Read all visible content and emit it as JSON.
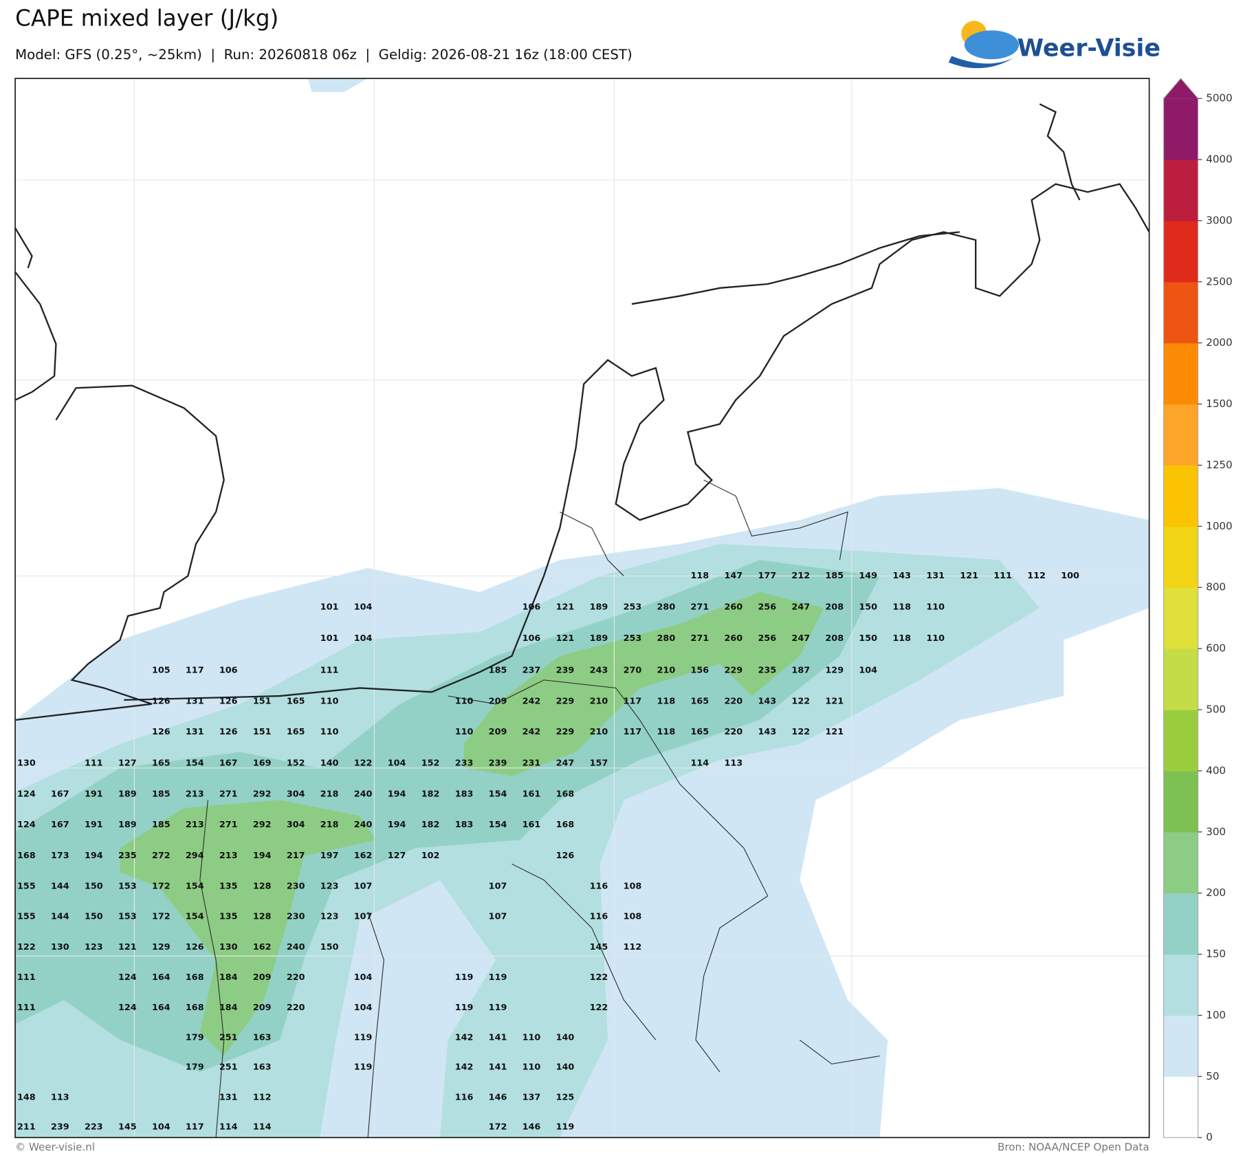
{
  "header": {
    "title": "CAPE mixed layer (J/kg)",
    "subtitle": "Model: GFS (0.25°, ~25km)  |  Run: 20260818 06z  |  Geldig: 2026-08-21 16z (18:00 CEST)"
  },
  "logo": {
    "text": "Weer-Visie"
  },
  "map": {
    "grid_values": [
      [
        null,
        null,
        null,
        null,
        null,
        null,
        null,
        null,
        null,
        null,
        null,
        null,
        null,
        null,
        null,
        null,
        null,
        null,
        null,
        null,
        118,
        147,
        177,
        212,
        185,
        149,
        143,
        131,
        121,
        111,
        112,
        100
      ],
      [
        null,
        null,
        null,
        null,
        null,
        null,
        null,
        null,
        null,
        101,
        104,
        null,
        null,
        null,
        null,
        106,
        121,
        189,
        253,
        280,
        271,
        260,
        256,
        247,
        208,
        150,
        118,
        110,
        null,
        null,
        null,
        null
      ],
      [
        null,
        null,
        null,
        null,
        null,
        null,
        null,
        null,
        null,
        101,
        104,
        null,
        null,
        null,
        null,
        106,
        121,
        189,
        253,
        280,
        271,
        260,
        256,
        247,
        208,
        150,
        118,
        110,
        null,
        null,
        null,
        null
      ],
      [
        null,
        null,
        null,
        null,
        105,
        117,
        106,
        null,
        null,
        111,
        null,
        null,
        null,
        null,
        185,
        237,
        239,
        243,
        270,
        210,
        156,
        229,
        235,
        187,
        129,
        104,
        null,
        null,
        null,
        null,
        null,
        null
      ],
      [
        null,
        null,
        null,
        null,
        126,
        131,
        126,
        151,
        165,
        110,
        null,
        null,
        null,
        110,
        209,
        242,
        229,
        210,
        117,
        118,
        165,
        220,
        143,
        122,
        121,
        null,
        null,
        null,
        null,
        null,
        null,
        null
      ],
      [
        null,
        null,
        null,
        null,
        126,
        131,
        126,
        151,
        165,
        110,
        null,
        null,
        null,
        110,
        209,
        242,
        229,
        210,
        117,
        118,
        165,
        220,
        143,
        122,
        121,
        null,
        null,
        null,
        null,
        null,
        null,
        null
      ],
      [
        130,
        null,
        111,
        127,
        165,
        154,
        167,
        169,
        152,
        140,
        122,
        104,
        152,
        233,
        239,
        231,
        247,
        157,
        null,
        null,
        114,
        113,
        null,
        null,
        null,
        null,
        null,
        null,
        null,
        null,
        null,
        null
      ],
      [
        124,
        167,
        191,
        189,
        185,
        213,
        271,
        292,
        304,
        218,
        240,
        194,
        182,
        183,
        154,
        161,
        168,
        null,
        null,
        null,
        null,
        null,
        null,
        null,
        null,
        null,
        null,
        null,
        null,
        null,
        null,
        null
      ],
      [
        124,
        167,
        191,
        189,
        185,
        213,
        271,
        292,
        304,
        218,
        240,
        194,
        182,
        183,
        154,
        161,
        168,
        null,
        null,
        null,
        null,
        null,
        null,
        null,
        null,
        null,
        null,
        null,
        null,
        null,
        null,
        null
      ],
      [
        168,
        173,
        194,
        235,
        272,
        294,
        213,
        194,
        217,
        197,
        162,
        127,
        102,
        null,
        null,
        null,
        126,
        null,
        null,
        null,
        null,
        null,
        null,
        null,
        null,
        null,
        null,
        null,
        null,
        null,
        null,
        null
      ],
      [
        155,
        144,
        150,
        153,
        172,
        154,
        135,
        128,
        230,
        123,
        107,
        null,
        null,
        null,
        107,
        null,
        null,
        116,
        108,
        null,
        null,
        null,
        null,
        null,
        null,
        null,
        null,
        null,
        null,
        null,
        null,
        null
      ],
      [
        155,
        144,
        150,
        153,
        172,
        154,
        135,
        128,
        230,
        123,
        107,
        null,
        null,
        null,
        107,
        null,
        null,
        116,
        108,
        null,
        null,
        null,
        null,
        null,
        null,
        null,
        null,
        null,
        null,
        null,
        null,
        null
      ],
      [
        122,
        130,
        123,
        121,
        129,
        126,
        130,
        162,
        240,
        150,
        null,
        null,
        null,
        null,
        null,
        null,
        null,
        145,
        112,
        null,
        null,
        null,
        null,
        null,
        null,
        null,
        null,
        null,
        null,
        null,
        null,
        null
      ],
      [
        111,
        null,
        null,
        124,
        164,
        168,
        184,
        209,
        220,
        null,
        104,
        null,
        null,
        119,
        119,
        null,
        null,
        122,
        null,
        null,
        null,
        null,
        null,
        null,
        null,
        null,
        null,
        null,
        null,
        null,
        null,
        null
      ],
      [
        111,
        null,
        null,
        124,
        164,
        168,
        184,
        209,
        220,
        null,
        104,
        null,
        null,
        119,
        119,
        null,
        null,
        122,
        null,
        null,
        null,
        null,
        null,
        null,
        null,
        null,
        null,
        null,
        null,
        null,
        null,
        null
      ],
      [
        null,
        null,
        null,
        null,
        null,
        179,
        251,
        163,
        null,
        null,
        119,
        null,
        null,
        142,
        141,
        110,
        140,
        null,
        null,
        null,
        null,
        null,
        null,
        null,
        null,
        null,
        null,
        null,
        null,
        null,
        null,
        null
      ],
      [
        null,
        null,
        null,
        null,
        null,
        179,
        251,
        163,
        null,
        null,
        119,
        null,
        null,
        142,
        141,
        110,
        140,
        null,
        null,
        null,
        null,
        null,
        null,
        null,
        null,
        null,
        null,
        null,
        null,
        null,
        null,
        null
      ],
      [
        148,
        113,
        null,
        null,
        null,
        null,
        131,
        112,
        null,
        null,
        null,
        null,
        null,
        116,
        146,
        137,
        125,
        null,
        null,
        null,
        null,
        null,
        null,
        null,
        null,
        null,
        null,
        null,
        null,
        null,
        null,
        null
      ],
      [
        211,
        239,
        223,
        145,
        104,
        117,
        114,
        114,
        null,
        null,
        null,
        null,
        null,
        null,
        172,
        146,
        119,
        null,
        null,
        null,
        null,
        null,
        null,
        null,
        null,
        null,
        null,
        null,
        null,
        null,
        null,
        null
      ]
    ]
  },
  "colorbar": {
    "ticks": [
      0,
      50,
      100,
      150,
      200,
      300,
      400,
      500,
      600,
      800,
      1000,
      1250,
      1500,
      2000,
      2500,
      3000,
      4000,
      5000
    ],
    "colors": [
      "#ffffff",
      "#d0e6f5",
      "#b3dfe0",
      "#93d1c6",
      "#8dcc84",
      "#7cc152",
      "#9acd3e",
      "#c4dc46",
      "#dfe03a",
      "#f2d416",
      "#fbc403",
      "#fca528",
      "#fb8a05",
      "#ee5412",
      "#e02a1b",
      "#bb1f3d",
      "#8e1a68"
    ],
    "extend_color": "#8e1a68"
  },
  "footer": {
    "credit": "© Weer-visie.nl",
    "source": "Bron: NOAA/NCEP Open Data"
  }
}
